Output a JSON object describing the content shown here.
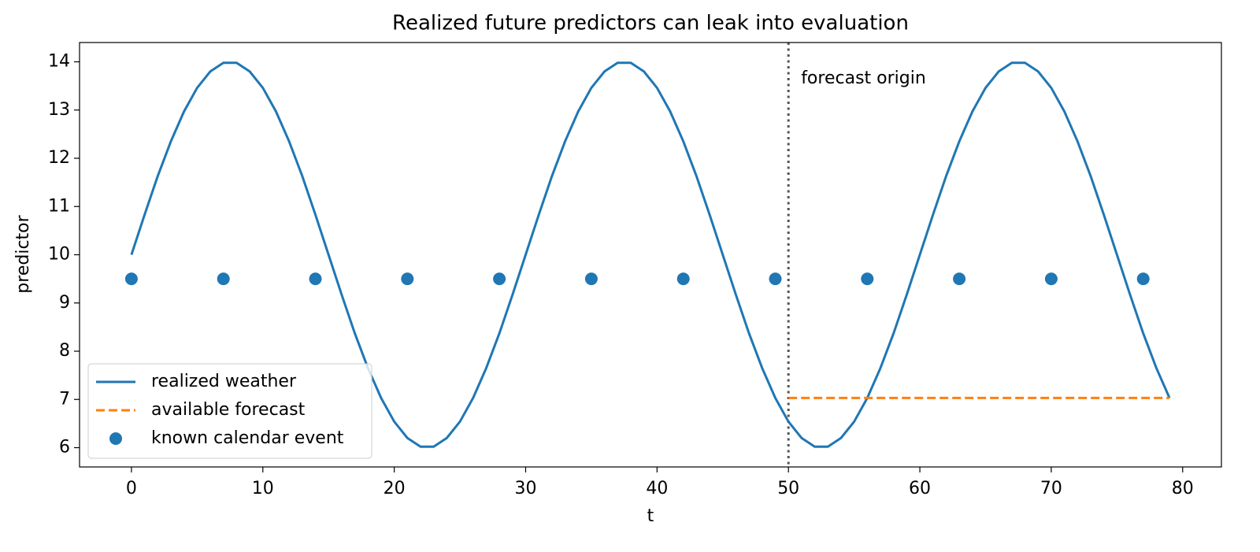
{
  "chart_data": {
    "type": "line",
    "title": "Realized future predictors can leak into evaluation",
    "x_label": "t",
    "y_label": "predictor",
    "xlim": [
      -3.95,
      82.95
    ],
    "ylim": [
      5.6,
      14.4
    ],
    "xticks": [
      0,
      10,
      20,
      30,
      40,
      50,
      60,
      70,
      80
    ],
    "yticks": [
      6,
      7,
      8,
      9,
      10,
      11,
      12,
      13,
      14
    ],
    "legend": "lower left",
    "series": [
      {
        "name": "realized weather",
        "type": "line",
        "style": "solid",
        "color": "#1f77b4",
        "x": [
          0,
          1,
          2,
          3,
          4,
          5,
          6,
          7,
          8,
          9,
          10,
          11,
          12,
          13,
          14,
          15,
          16,
          17,
          18,
          19,
          20,
          21,
          22,
          23,
          24,
          25,
          26,
          27,
          28,
          29,
          30,
          31,
          32,
          33,
          34,
          35,
          36,
          37,
          38,
          39,
          40,
          41,
          42,
          43,
          44,
          45,
          46,
          47,
          48,
          49,
          50,
          51,
          52,
          53,
          54,
          55,
          56,
          57,
          58,
          59,
          60,
          61,
          62,
          63,
          64,
          65,
          66,
          67,
          68,
          69,
          70,
          71,
          72,
          73,
          74,
          75,
          76,
          77,
          78,
          79
        ],
        "values": [
          10,
          10.83,
          11.63,
          12.35,
          12.97,
          13.46,
          13.8,
          13.98,
          13.98,
          13.8,
          13.46,
          12.97,
          12.35,
          11.63,
          10.83,
          10,
          9.17,
          8.37,
          7.65,
          7.03,
          6.54,
          6.2,
          6.02,
          6.02,
          6.2,
          6.54,
          7.03,
          7.65,
          8.37,
          9.17,
          10,
          10.83,
          11.63,
          12.35,
          12.97,
          13.46,
          13.8,
          13.98,
          13.98,
          13.8,
          13.46,
          12.97,
          12.35,
          11.63,
          10.83,
          10,
          9.17,
          8.37,
          7.65,
          7.03,
          6.54,
          6.2,
          6.02,
          6.02,
          6.2,
          6.54,
          7.03,
          7.65,
          8.37,
          9.17,
          10,
          10.83,
          11.63,
          12.35,
          12.97,
          13.46,
          13.8,
          13.98,
          13.98,
          13.8,
          13.46,
          12.97,
          12.35,
          11.63,
          10.83,
          10,
          9.17,
          8.37,
          7.65,
          7.03
        ]
      },
      {
        "name": "available forecast",
        "type": "line",
        "style": "dashed",
        "color": "#ff7f0e",
        "x": [
          50,
          79
        ],
        "values": [
          7.03,
          7.03
        ]
      },
      {
        "name": "known calendar event",
        "type": "scatter",
        "color": "#1f77b4",
        "x": [
          0,
          7,
          14,
          21,
          28,
          35,
          42,
          49,
          56,
          63,
          70,
          77
        ],
        "values": [
          9.5,
          9.5,
          9.5,
          9.5,
          9.5,
          9.5,
          9.5,
          9.5,
          9.5,
          9.5,
          9.5,
          9.5
        ]
      }
    ],
    "vline": {
      "x": 50,
      "color": "#555555",
      "label": "forecast origin"
    }
  }
}
